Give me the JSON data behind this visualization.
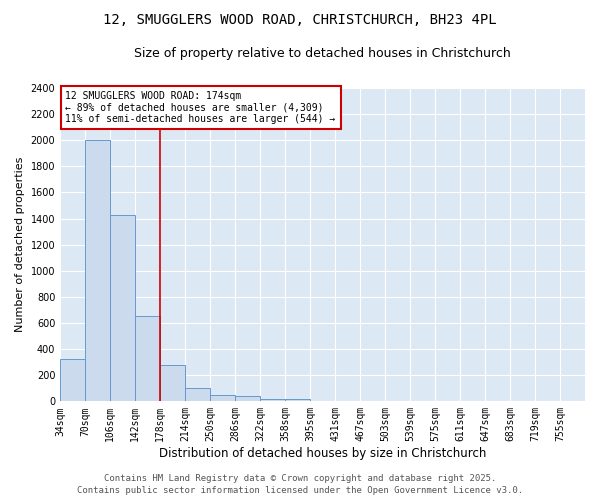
{
  "title_line1": "12, SMUGGLERS WOOD ROAD, CHRISTCHURCH, BH23 4PL",
  "title_line2": "Size of property relative to detached houses in Christchurch",
  "xlabel": "Distribution of detached houses by size in Christchurch",
  "ylabel": "Number of detached properties",
  "bin_labels": [
    "34sqm",
    "70sqm",
    "106sqm",
    "142sqm",
    "178sqm",
    "214sqm",
    "250sqm",
    "286sqm",
    "322sqm",
    "358sqm",
    "395sqm",
    "431sqm",
    "467sqm",
    "503sqm",
    "539sqm",
    "575sqm",
    "611sqm",
    "647sqm",
    "683sqm",
    "719sqm",
    "755sqm"
  ],
  "bar_heights": [
    325,
    2000,
    1425,
    650,
    280,
    100,
    45,
    40,
    20,
    20,
    0,
    0,
    0,
    0,
    0,
    0,
    0,
    0,
    0,
    0
  ],
  "bar_color": "#ccdaed",
  "bar_edge_color": "#6699cc",
  "plot_bg_color": "#dde8f5",
  "fig_bg_color": "#ffffff",
  "grid_color": "#ffffff",
  "red_line_x": 4.0,
  "annotation_text": "12 SMUGGLERS WOOD ROAD: 174sqm\n← 89% of detached houses are smaller (4,309)\n11% of semi-detached houses are larger (544) →",
  "annotation_box_color": "#ffffff",
  "annotation_box_edge": "#cc0000",
  "ylim": [
    0,
    2400
  ],
  "yticks": [
    0,
    200,
    400,
    600,
    800,
    1000,
    1200,
    1400,
    1600,
    1800,
    2000,
    2200,
    2400
  ],
  "footer_line1": "Contains HM Land Registry data © Crown copyright and database right 2025.",
  "footer_line2": "Contains public sector information licensed under the Open Government Licence v3.0.",
  "title_fontsize": 10,
  "subtitle_fontsize": 9,
  "ylabel_fontsize": 8,
  "xlabel_fontsize": 8.5,
  "tick_fontsize": 7,
  "annotation_fontsize": 7,
  "footer_fontsize": 6.5
}
